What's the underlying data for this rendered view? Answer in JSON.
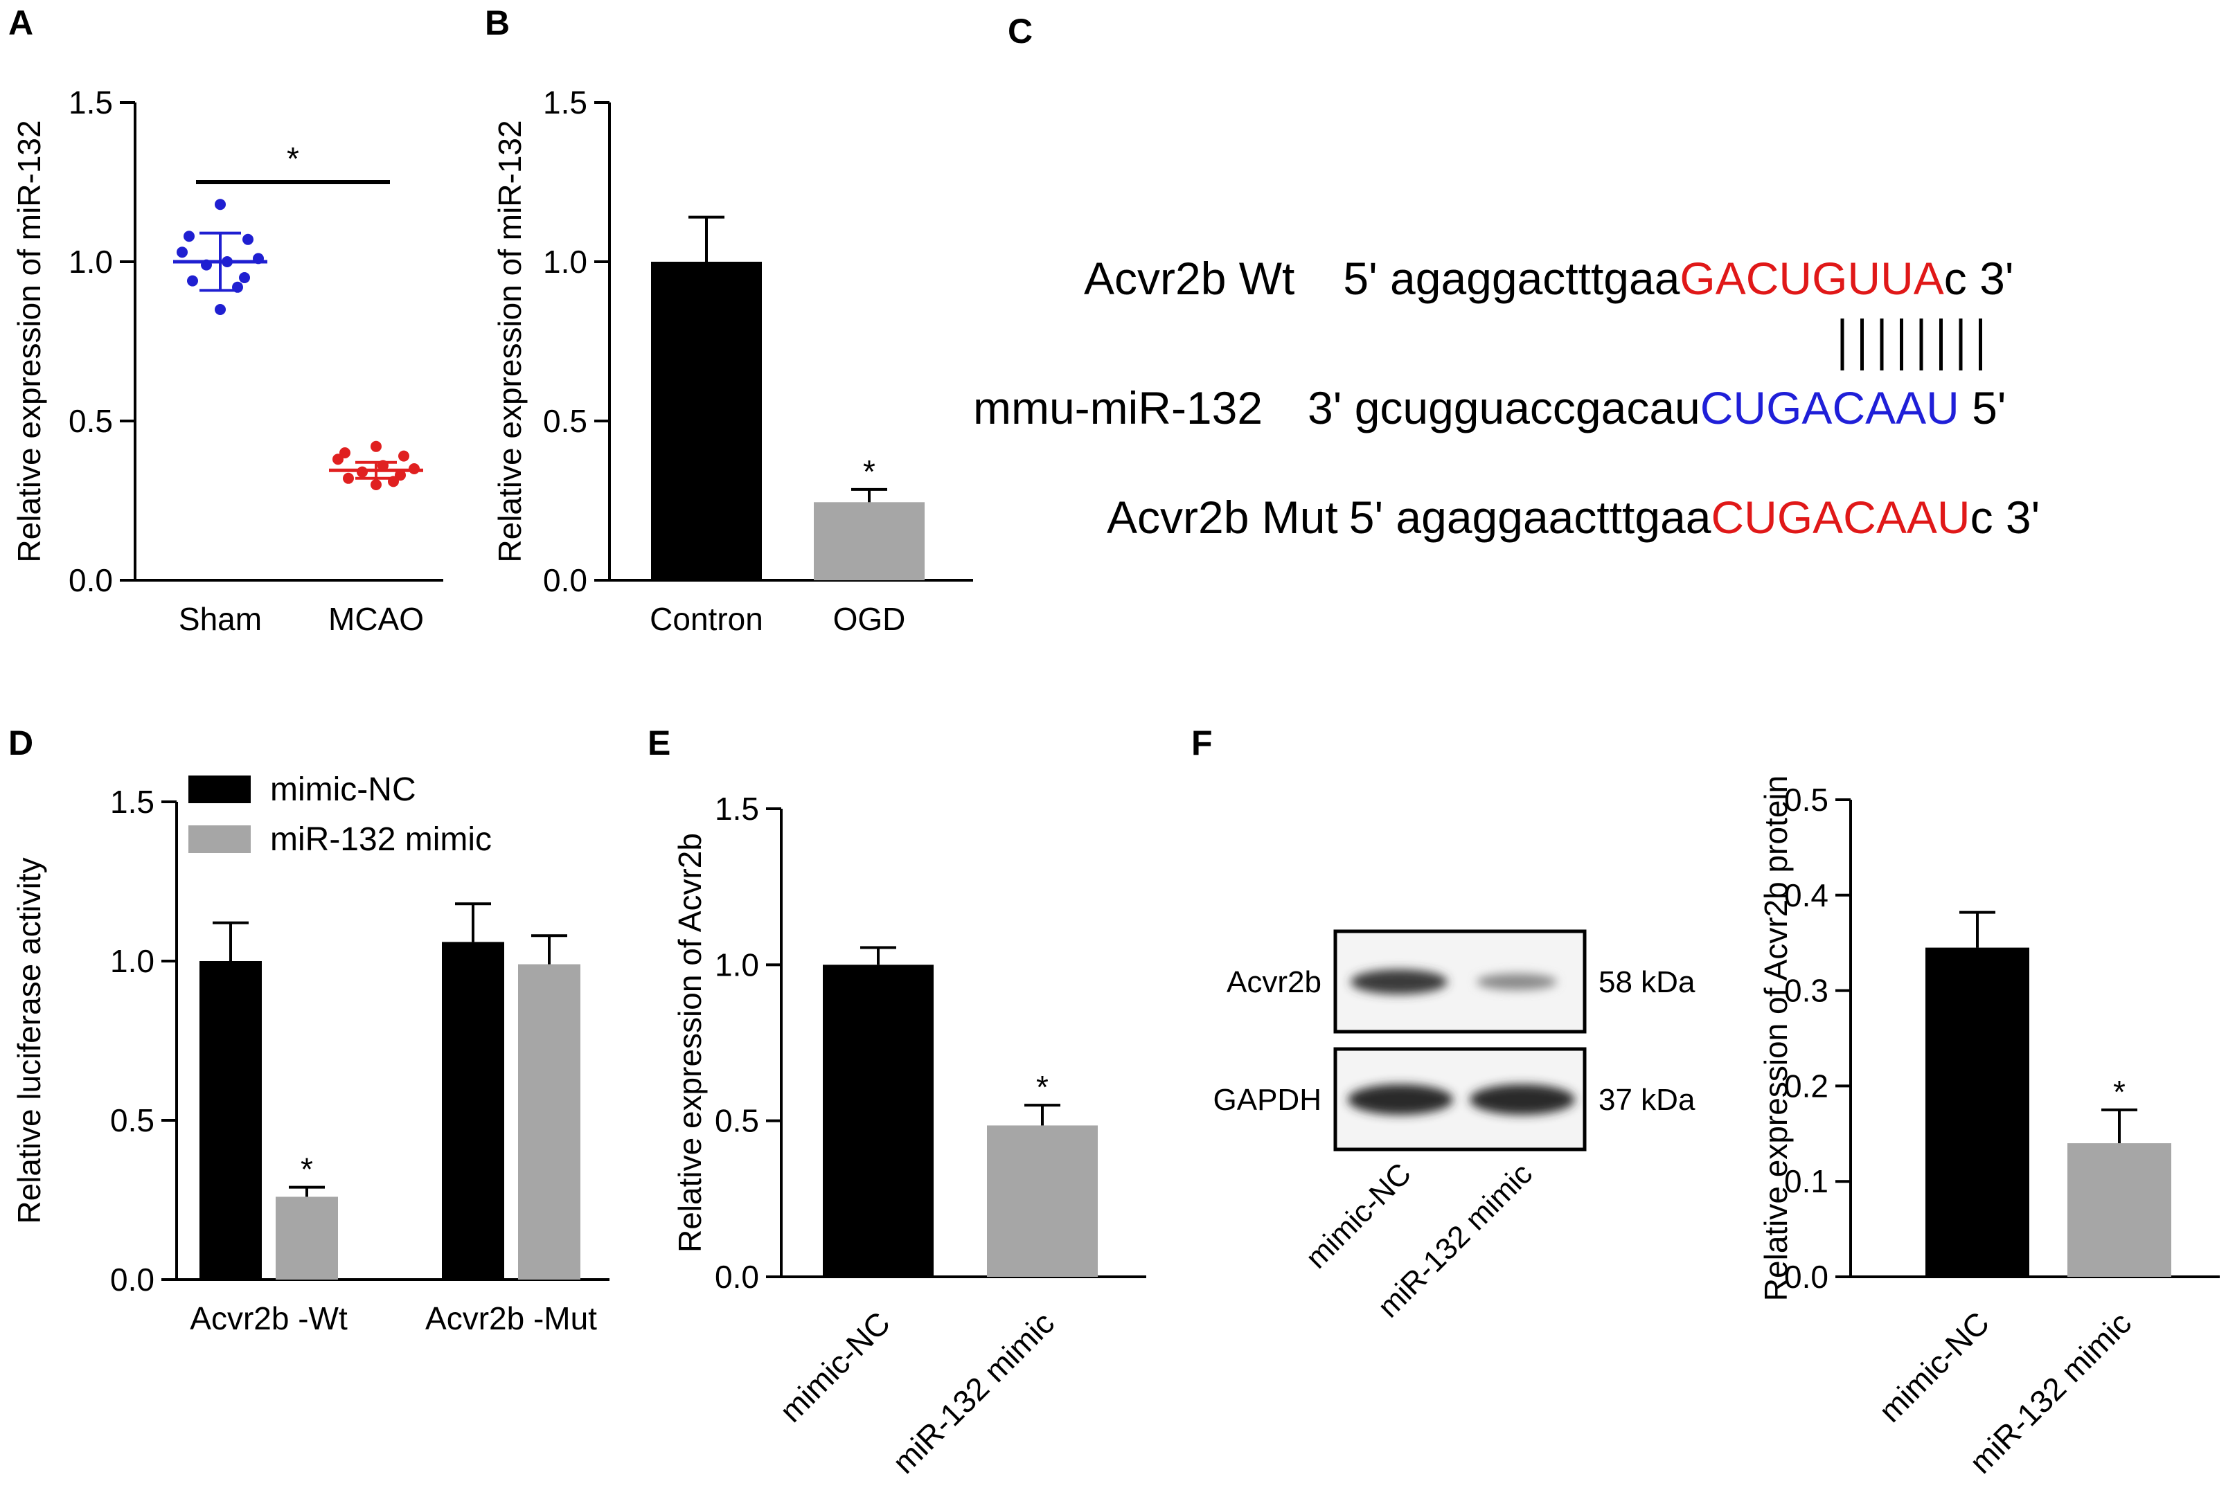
{
  "colors": {
    "black_bar": "#000000",
    "gray_bar": "#a6a6a6",
    "sham": "#1f1fd1",
    "mcao": "#e02020",
    "seq_red": "#e01818",
    "seq_blue": "#1f1fd8"
  },
  "chart_data": [
    {
      "id": "A",
      "type": "scatter",
      "label": "A",
      "categories": [
        "Sham",
        "MCAO"
      ],
      "ylabel": "Relative expression of miR-132",
      "ylim": [
        0,
        1.5
      ],
      "yticks": [
        "0.0",
        "0.5",
        "1.0",
        "1.5"
      ],
      "series": [
        {
          "category": "Sham",
          "color": "#1f1fd1",
          "mean": 1.0,
          "sd": 0.09,
          "points": [
            1.18,
            1.08,
            1.07,
            1.03,
            1.0,
            1.01,
            0.99,
            0.95,
            0.94,
            0.92,
            0.85
          ]
        },
        {
          "category": "MCAO",
          "color": "#e02020",
          "mean": 0.345,
          "sd": 0.025,
          "points": [
            0.42,
            0.4,
            0.39,
            0.38,
            0.36,
            0.35,
            0.34,
            0.33,
            0.32,
            0.31,
            0.3
          ]
        }
      ],
      "significance": "*"
    },
    {
      "id": "B",
      "type": "bar",
      "label": "B",
      "categories": [
        "Contron",
        "OGD"
      ],
      "ylabel": "Relative expression of miR-132",
      "ylim": [
        0,
        1.5
      ],
      "yticks": [
        "0.0",
        "0.5",
        "1.0",
        "1.5"
      ],
      "values": [
        1.0,
        0.245
      ],
      "errors": [
        0.14,
        0.04
      ],
      "colors": [
        "#000000",
        "#a6a6a6"
      ],
      "annotations": [
        "",
        "*"
      ]
    },
    {
      "id": "D",
      "type": "bar",
      "label": "D",
      "categories": [
        "Acvr2b -Wt",
        "Acvr2b -Mut"
      ],
      "ylabel": "Relative luciferase activity",
      "ylim": [
        0,
        1.5
      ],
      "yticks": [
        "0.0",
        "0.5",
        "1.0",
        "1.5"
      ],
      "legend": "top-left",
      "series": [
        {
          "name": "mimic-NC",
          "color": "#000000",
          "values": [
            1.0,
            1.06
          ],
          "errors": [
            0.12,
            0.12
          ],
          "annotations": [
            "",
            ""
          ]
        },
        {
          "name": "miR-132 mimic",
          "color": "#a6a6a6",
          "values": [
            0.26,
            0.99
          ],
          "errors": [
            0.03,
            0.09
          ],
          "annotations": [
            "*",
            ""
          ]
        }
      ]
    },
    {
      "id": "E",
      "type": "bar",
      "label": "E",
      "categories": [
        "mimic-NC",
        "miR-132 mimic"
      ],
      "ylabel": "Relative expression of Acvr2b",
      "ylim": [
        0,
        1.5
      ],
      "yticks": [
        "0.0",
        "0.5",
        "1.0",
        "1.5"
      ],
      "values": [
        1.0,
        0.485
      ],
      "errors": [
        0.055,
        0.065
      ],
      "colors": [
        "#000000",
        "#a6a6a6"
      ],
      "annotations": [
        "",
        "*"
      ]
    },
    {
      "id": "F",
      "type": "bar",
      "categories": [
        "mimic-NC",
        "miR-132 mimic"
      ],
      "ylabel": "Relative expression of Acvr2b protein",
      "ylim": [
        0,
        0.5
      ],
      "yticks": [
        "0.0",
        "0.1",
        "0.2",
        "0.3",
        "0.4",
        "0.5"
      ],
      "values": [
        0.345,
        0.14
      ],
      "errors": [
        0.037,
        0.035
      ],
      "colors": [
        "#000000",
        "#a6a6a6"
      ],
      "annotations": [
        "",
        "*"
      ]
    }
  ],
  "panel_c": {
    "label": "C",
    "wt": {
      "name": "Acvr2b Wt",
      "prefix": "5' agaggactttgaa",
      "site": "GACUGUUA",
      "suffix": "c 3'"
    },
    "mir": {
      "name": "mmu-miR-132",
      "prefix": "3' gcugguaccgacau",
      "site": "CUGACAAU",
      "suffix": " 5'"
    },
    "mut": {
      "name": "Acvr2b Mut",
      "prefix": "5' agaggaactttgaa",
      "site": "CUGACAAU",
      "suffix": "c 3'"
    },
    "pairs": 8
  },
  "panel_f": {
    "label": "F",
    "blot_rows": [
      {
        "protein": "Acvr2b",
        "size": "58 kDa"
      },
      {
        "protein": "GAPDH",
        "size": "37 kDa"
      }
    ],
    "lanes": [
      "mimic-NC",
      "miR-132 mimic"
    ]
  }
}
